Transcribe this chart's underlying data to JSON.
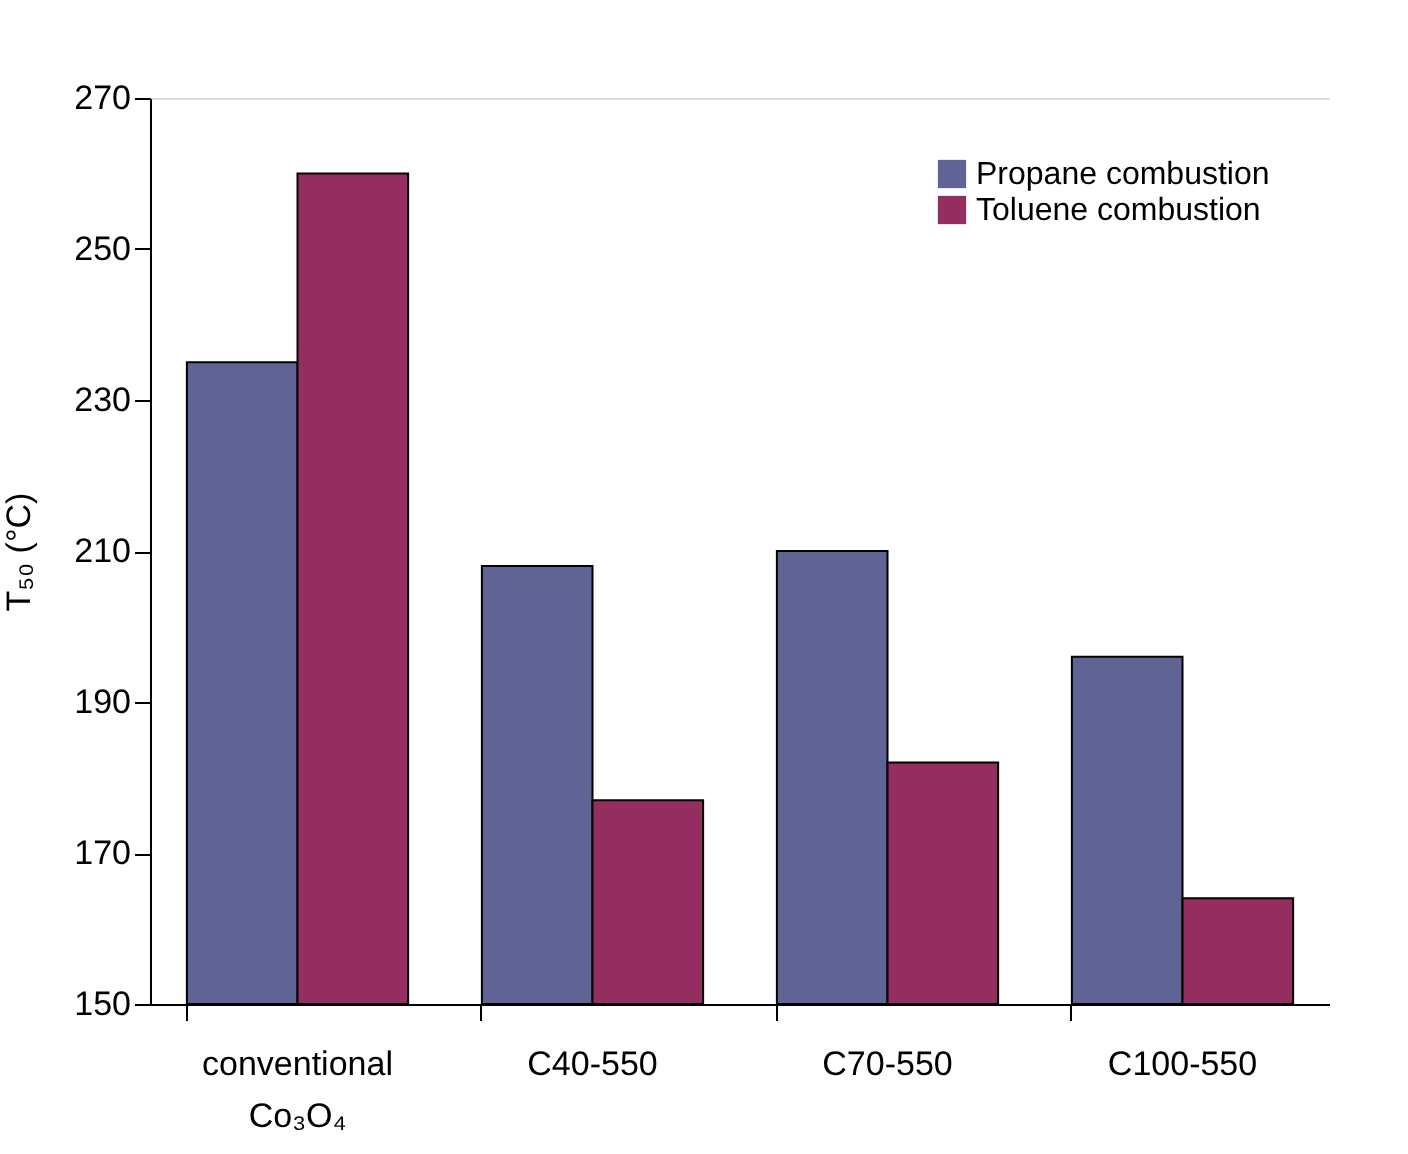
{
  "chart_data": {
    "type": "bar",
    "ylabel": "T₅₀ (°C)",
    "categories": [
      "conventional Co₃O₄",
      "C40-550",
      "C70-550",
      "C100-550"
    ],
    "series": [
      {
        "name": "Propane combustion",
        "color": "#5f6494",
        "values": [
          235,
          208,
          210,
          196
        ]
      },
      {
        "name": "Toluene combustion",
        "color": "#952e60",
        "values": [
          260,
          177,
          182,
          164
        ]
      }
    ],
    "ylim": [
      150,
      270
    ],
    "yticks": [
      150,
      170,
      190,
      210,
      230,
      250,
      270
    ],
    "grid": false,
    "legend": "top right"
  }
}
